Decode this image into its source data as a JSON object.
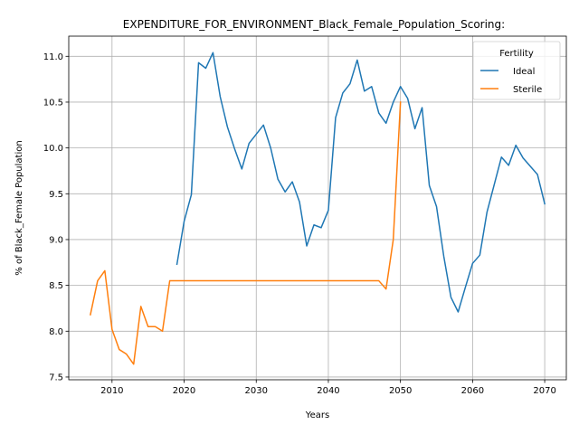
{
  "chart_data": {
    "type": "line",
    "title": "EXPENDITURE_FOR_ENVIRONMENT_Black_Female_Population_Scoring:",
    "xlabel": "Years",
    "ylabel": "% of Black_Female Population",
    "xlim": [
      2004,
      2073
    ],
    "ylim": [
      7.47,
      11.22
    ],
    "xticks": [
      2010,
      2020,
      2030,
      2040,
      2050,
      2060,
      2070
    ],
    "yticks": [
      7.5,
      8.0,
      8.5,
      9.0,
      9.5,
      10.0,
      10.5,
      11.0
    ],
    "grid": true,
    "legend": {
      "title": "Fertility",
      "placement": "top-right"
    },
    "series": [
      {
        "name": "Ideal",
        "color": "#1f77b4",
        "x": [
          2019,
          2020,
          2021,
          2022,
          2023,
          2024,
          2025,
          2026,
          2027,
          2028,
          2029,
          2030,
          2031,
          2032,
          2033,
          2034,
          2035,
          2036,
          2037,
          2038,
          2039,
          2040,
          2041,
          2042,
          2043,
          2044,
          2045,
          2046,
          2047,
          2048,
          2049,
          2050,
          2051,
          2052,
          2053,
          2054,
          2055,
          2056,
          2057,
          2058,
          2059,
          2060,
          2061,
          2062,
          2063,
          2064,
          2065,
          2066,
          2067,
          2068,
          2069,
          2070
        ],
        "y": [
          8.73,
          9.2,
          9.49,
          10.93,
          10.87,
          11.04,
          10.56,
          10.23,
          9.99,
          9.77,
          10.05,
          10.15,
          10.25,
          10.0,
          9.66,
          9.52,
          9.63,
          9.41,
          8.93,
          9.16,
          9.13,
          9.32,
          10.33,
          10.6,
          10.7,
          10.96,
          10.62,
          10.67,
          10.38,
          10.27,
          10.5,
          10.67,
          10.54,
          10.21,
          10.44,
          9.59,
          9.36,
          8.82,
          8.37,
          8.21,
          8.48,
          8.74,
          8.83,
          9.3,
          9.6,
          9.9,
          9.81,
          10.03,
          9.89,
          9.8,
          9.71,
          9.39
        ]
      },
      {
        "name": "Sterile",
        "color": "#ff7f0e",
        "x": [
          2007,
          2008,
          2009,
          2010,
          2011,
          2012,
          2013,
          2014,
          2015,
          2016,
          2017,
          2018,
          2019,
          2020,
          2021,
          2022,
          2023,
          2024,
          2025,
          2026,
          2027,
          2028,
          2029,
          2030,
          2031,
          2032,
          2033,
          2034,
          2035,
          2036,
          2037,
          2038,
          2039,
          2040,
          2041,
          2042,
          2043,
          2044,
          2045,
          2046,
          2047,
          2048,
          2049,
          2050
        ],
        "y": [
          8.18,
          8.55,
          8.66,
          8.02,
          7.8,
          7.75,
          7.64,
          8.27,
          8.05,
          8.05,
          8.0,
          8.55,
          8.55,
          8.55,
          8.55,
          8.55,
          8.55,
          8.55,
          8.55,
          8.55,
          8.55,
          8.55,
          8.55,
          8.55,
          8.55,
          8.55,
          8.55,
          8.55,
          8.55,
          8.55,
          8.55,
          8.55,
          8.55,
          8.55,
          8.55,
          8.55,
          8.55,
          8.55,
          8.55,
          8.55,
          8.55,
          8.46,
          9.0,
          10.5
        ]
      }
    ]
  }
}
